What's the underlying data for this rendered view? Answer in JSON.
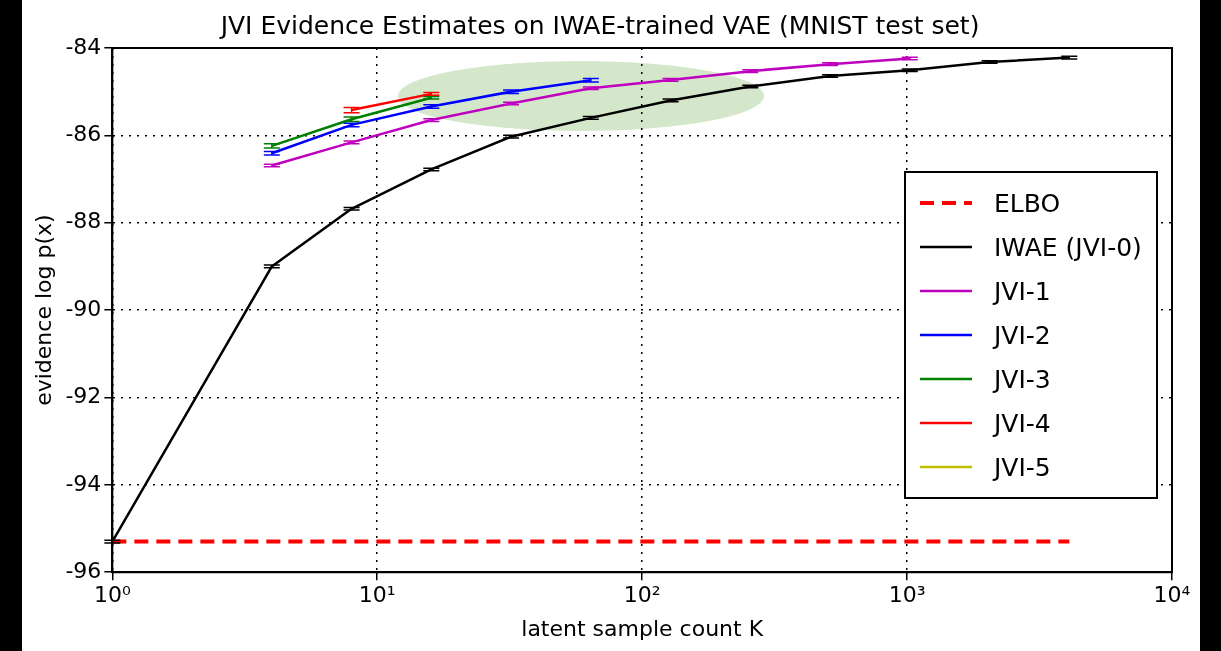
{
  "chart_data": {
    "type": "line",
    "title": "JVI Evidence Estimates on IWAE-trained VAE (MNIST test set)",
    "xlabel": "latent sample count K",
    "ylabel": "evidence log p(x)",
    "log": "x",
    "xlim": [
      1,
      10000
    ],
    "xticks": [
      {
        "value": 1,
        "label": "10⁰"
      },
      {
        "value": 10,
        "label": "10¹"
      },
      {
        "value": 100,
        "label": "10²"
      },
      {
        "value": 1000,
        "label": "10³"
      },
      {
        "value": 10000,
        "label": "10⁴"
      }
    ],
    "ylim": [
      -96,
      -84
    ],
    "yticks": [
      -96,
      -94,
      -92,
      -90,
      -88,
      -86,
      -84
    ],
    "grid": true,
    "legend": "right",
    "marker": "none",
    "series": [
      {
        "name": "ELBO",
        "color": "#ff0000",
        "line_style": "dashed",
        "x": [
          1,
          4096
        ],
        "values": [
          -95.3,
          -95.3
        ]
      },
      {
        "name": "IWAE (JVI-0)",
        "color": "#000000",
        "x": [
          1,
          4,
          8,
          16,
          32,
          64,
          128,
          256,
          512,
          1024,
          2048,
          4096
        ],
        "values": [
          -95.3,
          -89.0,
          -87.68,
          -86.78,
          -86.03,
          -85.6,
          -85.2,
          -84.88,
          -84.64,
          -84.51,
          -84.32,
          -84.22
        ],
        "errors": [
          0.03,
          0.03,
          0.03,
          0.03,
          0.03,
          0.03,
          0.03,
          0.03,
          0.03,
          0.03,
          0.03,
          0.03
        ]
      },
      {
        "name": "JVI-1",
        "color": "#bf00bf",
        "x": [
          4,
          8,
          16,
          32,
          64,
          128,
          256,
          512,
          1024
        ],
        "values": [
          -86.69,
          -86.16,
          -85.65,
          -85.27,
          -84.92,
          -84.73,
          -84.53,
          -84.37,
          -84.24
        ],
        "errors": [
          0.03,
          0.03,
          0.03,
          0.03,
          0.03,
          0.03,
          0.03,
          0.03,
          0.03
        ]
      },
      {
        "name": "JVI-2",
        "color": "#0000ff",
        "x": [
          4,
          8,
          16,
          32,
          64
        ],
        "values": [
          -86.41,
          -85.76,
          -85.34,
          -85.0,
          -84.74
        ],
        "errors": [
          0.04,
          0.04,
          0.04,
          0.04,
          0.04
        ]
      },
      {
        "name": "JVI-3",
        "color": "#008000",
        "x": [
          4,
          8,
          16
        ],
        "values": [
          -86.24,
          -85.63,
          -85.14
        ],
        "errors": [
          0.05,
          0.05,
          0.03
        ]
      },
      {
        "name": "JVI-4",
        "color": "#ff0000",
        "x": [
          8,
          16
        ],
        "values": [
          -85.42,
          -85.05
        ],
        "errors": [
          0.06,
          0.03
        ]
      },
      {
        "name": "JVI-5",
        "color": "#bfbf00"
      }
    ]
  }
}
